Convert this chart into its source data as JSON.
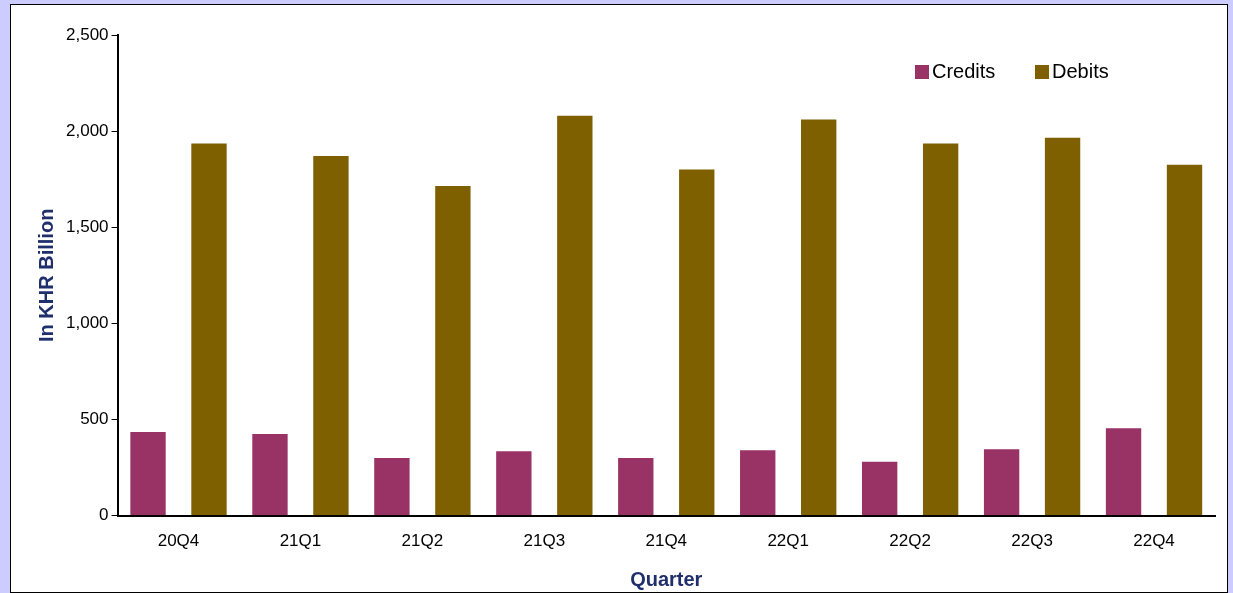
{
  "chart_data": {
    "type": "bar",
    "xlabel": "Quarter",
    "ylabel": "In KHR Billion",
    "categories": [
      "20Q4",
      "21Q1",
      "21Q2",
      "21Q3",
      "21Q4",
      "22Q1",
      "22Q2",
      "22Q3",
      "22Q4"
    ],
    "series": [
      {
        "name": "Credits",
        "color": "#993366",
        "values": [
          435,
          425,
          300,
          335,
          300,
          340,
          280,
          345,
          455
        ]
      },
      {
        "name": "Debits",
        "color": "#7f6000",
        "values": [
          1935,
          1870,
          1715,
          2080,
          1800,
          2060,
          1935,
          1965,
          1825
        ]
      }
    ],
    "ylim": [
      0,
      2500
    ],
    "yticks": [
      {
        "value": 0,
        "label": "0"
      },
      {
        "value": 500,
        "label": "500"
      },
      {
        "value": 1000,
        "label": "1,000"
      },
      {
        "value": 1500,
        "label": "1,500"
      },
      {
        "value": 2000,
        "label": "2,000"
      },
      {
        "value": 2500,
        "label": "2,500"
      }
    ],
    "grid": false,
    "legend": "top right"
  }
}
